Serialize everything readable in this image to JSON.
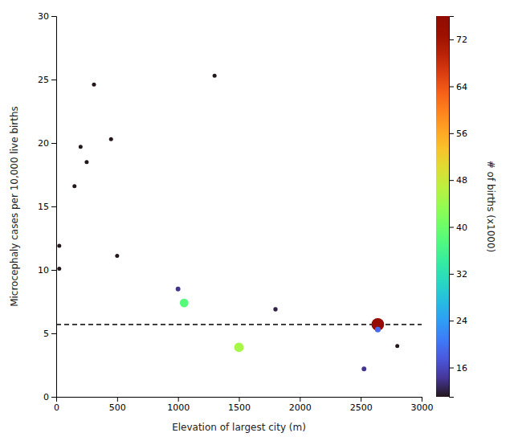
{
  "chart_data": {
    "type": "scatter",
    "xlabel": "Elevation of largest city (m)",
    "ylabel": "Microcephaly cases per 10,000 live births",
    "x": [
      25,
      25,
      150,
      200,
      250,
      310,
      450,
      500,
      1000,
      1050,
      1300,
      1500,
      1800,
      2527,
      2640,
      2640,
      2800
    ],
    "values": [
      10.1,
      11.9,
      16.6,
      19.7,
      18.5,
      24.6,
      20.3,
      11.1,
      8.5,
      7.4,
      25.3,
      3.9,
      6.9,
      2.2,
      5.7,
      5.3,
      4.0
    ],
    "births": [
      11,
      11,
      11,
      11,
      11,
      11,
      11,
      11,
      14,
      38,
      11,
      45,
      12,
      14,
      74,
      19,
      11
    ],
    "reference_line": {
      "y": 5.7,
      "line_style": "dashed"
    },
    "xlim": [
      0,
      3000
    ],
    "ylim": [
      0,
      30
    ],
    "xticks": [
      0,
      500,
      1000,
      1500,
      2000,
      2500,
      3000
    ],
    "yticks": [
      0,
      5,
      10,
      15,
      20,
      25,
      30
    ],
    "colorbar_label": "# of births (x1000)",
    "colorbar_lim": [
      11,
      76
    ],
    "colorbar_ticks": [
      16,
      24,
      32,
      40,
      48,
      56,
      64,
      72
    ]
  }
}
